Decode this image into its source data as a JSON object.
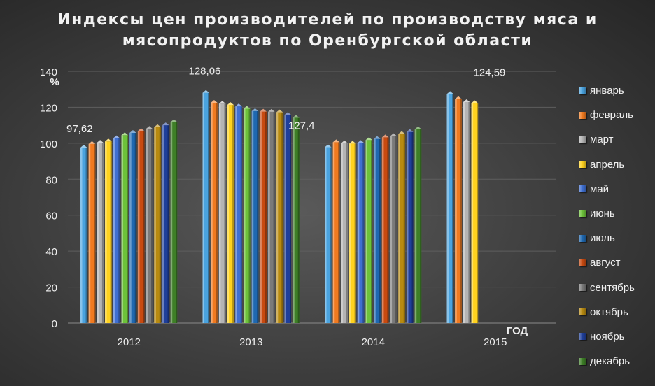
{
  "chart_data": {
    "type": "bar",
    "title_line1": "Индексы цен производителей по производству мяса и",
    "title_line2": "мясопродуктов по Оренбургской области",
    "ylabel": "%",
    "xlabel": "ГОД",
    "ylim": [
      0,
      140
    ],
    "yticks": [
      0,
      20,
      40,
      60,
      80,
      100,
      120,
      140
    ],
    "grid": true,
    "legend_position": "right",
    "categories": [
      "2012",
      "2013",
      "2014",
      "2015"
    ],
    "series": [
      {
        "name": "январь",
        "color": "#4aa3df",
        "values": [
          97.62,
          128.06,
          97.8,
          127.4
        ]
      },
      {
        "name": "февраль",
        "color": "#f07a20",
        "values": [
          99.6,
          122.5,
          100.6,
          124.59
        ]
      },
      {
        "name": "март",
        "color": "#b4b4b4",
        "values": [
          100.3,
          122.0,
          100.0,
          122.9
        ]
      },
      {
        "name": "апрель",
        "color": "#ffd21f",
        "values": [
          101.0,
          121.3,
          99.8,
          122.3
        ]
      },
      {
        "name": "май",
        "color": "#3f6fd1",
        "values": [
          102.8,
          120.5,
          100.2,
          null
        ]
      },
      {
        "name": "июнь",
        "color": "#6dc23a",
        "values": [
          104.5,
          119.2,
          101.8,
          null
        ]
      },
      {
        "name": "июль",
        "color": "#1f68b0",
        "values": [
          105.8,
          117.9,
          102.4,
          null
        ]
      },
      {
        "name": "август",
        "color": "#c84a10",
        "values": [
          106.8,
          117.6,
          103.3,
          null
        ]
      },
      {
        "name": "сентябрь",
        "color": "#7a7a7a",
        "values": [
          108.0,
          117.5,
          104.0,
          null
        ]
      },
      {
        "name": "октябрь",
        "color": "#b88a10",
        "values": [
          109.0,
          117.2,
          105.2,
          null
        ]
      },
      {
        "name": "ноябрь",
        "color": "#1f3f9a",
        "values": [
          110.0,
          115.8,
          106.3,
          null
        ]
      },
      {
        "name": "декабрь",
        "color": "#3e7f27",
        "values": [
          111.8,
          114.2,
          107.8,
          null
        ]
      }
    ],
    "data_labels": [
      "97,62",
      "128,06",
      "127,4",
      "124,59"
    ]
  }
}
